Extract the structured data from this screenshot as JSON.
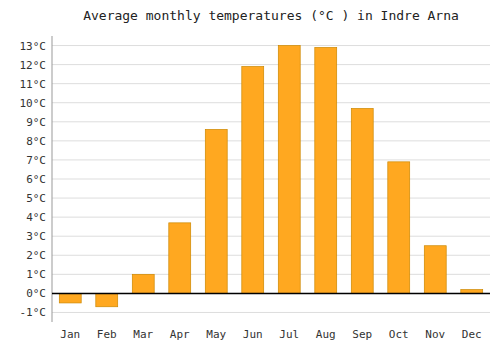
{
  "chart_data": {
    "type": "bar",
    "title": "Average monthly temperatures (°C ) in Indre Arna",
    "categories": [
      "Jan",
      "Feb",
      "Mar",
      "Apr",
      "May",
      "Jun",
      "Jul",
      "Aug",
      "Sep",
      "Oct",
      "Nov",
      "Dec"
    ],
    "values": [
      -0.5,
      -0.7,
      1.0,
      3.7,
      8.6,
      11.9,
      13.0,
      12.9,
      9.7,
      6.9,
      2.5,
      0.2
    ],
    "color": "#FFA820",
    "ylim": [
      -1.5,
      13.5
    ],
    "yticks": [
      {
        "value": -1,
        "label": "-1°C"
      },
      {
        "value": 0,
        "label": "0°C"
      },
      {
        "value": 1,
        "label": "1°C"
      },
      {
        "value": 2,
        "label": "2°C"
      },
      {
        "value": 3,
        "label": "3°C"
      },
      {
        "value": 4,
        "label": "4°C"
      },
      {
        "value": 5,
        "label": "5°C"
      },
      {
        "value": 6,
        "label": "6°C"
      },
      {
        "value": 7,
        "label": "7°C"
      },
      {
        "value": 8,
        "label": "8°C"
      },
      {
        "value": 9,
        "label": "9°C"
      },
      {
        "value": 10,
        "label": "10°C"
      },
      {
        "value": 11,
        "label": "11°C"
      },
      {
        "value": 12,
        "label": "12°C"
      },
      {
        "value": 13,
        "label": "13°C"
      }
    ],
    "grid": true
  }
}
